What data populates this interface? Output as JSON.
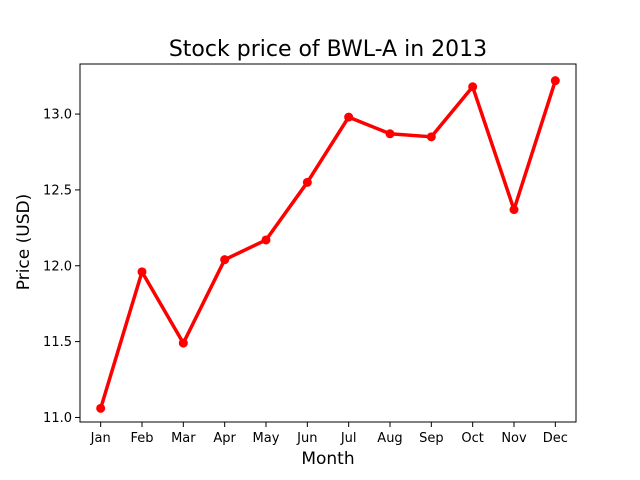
{
  "chart_data": {
    "type": "line",
    "title": "Stock price of BWL-A in 2013",
    "xlabel": "Month",
    "ylabel": "Price (USD)",
    "categories": [
      "Jan",
      "Feb",
      "Mar",
      "Apr",
      "May",
      "Jun",
      "Jul",
      "Aug",
      "Sep",
      "Oct",
      "Nov",
      "Dec"
    ],
    "series": [
      {
        "values": [
          11.06,
          11.96,
          11.49,
          12.04,
          12.17,
          12.55,
          12.98,
          12.87,
          12.85,
          13.18,
          12.37,
          13.22
        ],
        "color": "#ff0000",
        "marker": "circle"
      }
    ],
    "ylim": [
      10.97,
      13.33
    ],
    "yticks": [
      11.0,
      11.5,
      12.0,
      12.5,
      13.0
    ],
    "ytick_labels": [
      "11.0",
      "11.5",
      "12.0",
      "12.5",
      "13.0"
    ],
    "grid": false,
    "legend": "none"
  }
}
